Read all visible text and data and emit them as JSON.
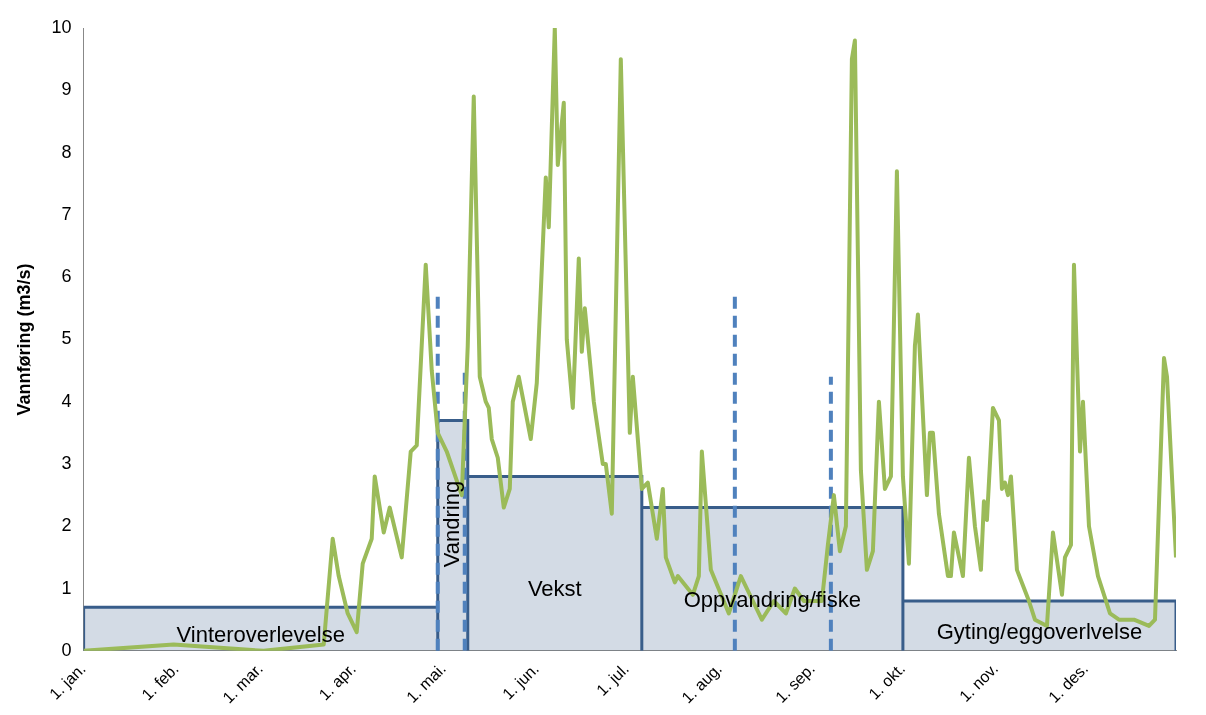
{
  "chart_data": {
    "type": "line",
    "ylabel": "Vannføring (m3/s)",
    "xlim": [
      "--01-01",
      "--12-31"
    ],
    "xticks": [
      {
        "value": "--01-01",
        "label": "1. jan."
      },
      {
        "value": "--02-01",
        "label": "1. feb."
      },
      {
        "value": "--03-01",
        "label": "1. mar."
      },
      {
        "value": "--04-01",
        "label": "1. apr."
      },
      {
        "value": "--05-01",
        "label": "1. mai."
      },
      {
        "value": "--06-01",
        "label": "1. jun."
      },
      {
        "value": "--07-01",
        "label": "1. jul."
      },
      {
        "value": "--08-01",
        "label": "1. aug."
      },
      {
        "value": "--09-01",
        "label": "1. sep."
      },
      {
        "value": "--10-01",
        "label": "1. okt."
      },
      {
        "value": "--11-01",
        "label": "1. nov."
      },
      {
        "value": "--12-01",
        "label": "1. des."
      }
    ],
    "ylim": [
      0,
      10
    ],
    "yticks": [
      0,
      1,
      2,
      3,
      4,
      5,
      6,
      7,
      8,
      9,
      10
    ],
    "grid": false,
    "legend": false,
    "marker": "none",
    "series": [
      {
        "type": "area",
        "color": "#385d8a",
        "x": [
          "--01-01",
          "--01-01",
          "--04-29",
          "--04-29",
          "--04-29",
          "--05-09",
          "--05-09",
          "--05-09",
          "--07-06",
          "--07-06",
          "--07-06",
          "--10-01",
          "--10-01",
          "--10-01",
          "--12-31",
          "--12-31"
        ],
        "values": [
          0,
          0.7,
          0.7,
          0,
          3.7,
          3.7,
          0,
          2.8,
          2.8,
          0,
          2.3,
          2.3,
          0,
          0.8,
          0.8,
          0
        ]
      },
      {
        "color": "#9bbb59",
        "line_style": "solid",
        "x": [
          "--01-01",
          "--01-31",
          "--03-02",
          "--03-22",
          "--03-25",
          "--03-27",
          "--03-30",
          "--04-02",
          "--04-04",
          "--04-07",
          "--04-08",
          "--04-11",
          "--04-13",
          "--04-17",
          "--04-20",
          "--04-22",
          "--04-25",
          "--04-27",
          "--04-29",
          "--05-02",
          "--05-07",
          "--05-09",
          "--05-11",
          "--05-13",
          "--05-15",
          "--05-16",
          "--05-17",
          "--05-19",
          "--05-21",
          "--05-23",
          "--05-24",
          "--05-26",
          "--05-28",
          "--05-30",
          "--06-01",
          "--06-04",
          "--06-05",
          "--06-07",
          "--06-08",
          "--06-10",
          "--06-11",
          "--06-13",
          "--06-15",
          "--06-16",
          "--06-17",
          "--06-20",
          "--06-23",
          "--06-24",
          "--06-26",
          "--06-29",
          "--07-02",
          "--07-03",
          "--07-06",
          "--07-08",
          "--07-11",
          "--07-13",
          "--07-14",
          "--07-17",
          "--07-18",
          "--07-23",
          "--07-25",
          "--07-26",
          "--07-29",
          "--08-04",
          "--08-08",
          "--08-12",
          "--08-15",
          "--08-19",
          "--08-23",
          "--08-26",
          "--08-29",
          "--09-04",
          "--09-06",
          "--09-08",
          "--09-10",
          "--09-12",
          "--09-14",
          "--09-15",
          "--09-17",
          "--09-19",
          "--09-21",
          "--09-23",
          "--09-25",
          "--09-27",
          "--09-29",
          "--10-01",
          "--10-03",
          "--10-05",
          "--10-06",
          "--10-09",
          "--10-10",
          "--10-11",
          "--10-13",
          "--10-16",
          "--10-17",
          "--10-18",
          "--10-21",
          "--10-23",
          "--10-25",
          "--10-27",
          "--10-28",
          "--10-29",
          "--10-31",
          "--11-02",
          "--11-03",
          "--11-04",
          "--11-05",
          "--11-06",
          "--11-08",
          "--11-12",
          "--11-14",
          "--11-18",
          "--11-20",
          "--11-23",
          "--11-24",
          "--11-26",
          "--11-27",
          "--11-29",
          "--11-30",
          "--12-02",
          "--12-05",
          "--12-09",
          "--12-12",
          "--12-17",
          "--12-22",
          "--12-24",
          "--12-27",
          "--12-28",
          "--12-31"
        ],
        "values": [
          0.0,
          0.1,
          0.0,
          0.1,
          1.8,
          1.2,
          0.6,
          0.3,
          1.4,
          1.8,
          2.8,
          1.9,
          2.3,
          1.5,
          3.2,
          3.3,
          6.2,
          4.5,
          3.5,
          3.2,
          2.5,
          4.9,
          8.9,
          4.4,
          4.0,
          3.9,
          3.4,
          3.1,
          2.3,
          2.6,
          4.0,
          4.4,
          3.9,
          3.4,
          4.3,
          7.6,
          6.8,
          10.0,
          7.8,
          8.8,
          5.0,
          3.9,
          6.3,
          4.8,
          5.5,
          4.0,
          3.0,
          3.0,
          2.2,
          9.5,
          3.5,
          4.4,
          2.6,
          2.7,
          1.8,
          2.6,
          1.5,
          1.1,
          1.2,
          0.9,
          1.2,
          3.2,
          1.3,
          0.6,
          1.2,
          0.8,
          0.5,
          0.8,
          0.6,
          1.0,
          0.8,
          0.8,
          1.7,
          2.5,
          1.6,
          2.0,
          9.5,
          9.8,
          2.9,
          1.3,
          1.6,
          4.0,
          2.6,
          2.8,
          7.7,
          2.8,
          1.4,
          4.9,
          5.4,
          2.5,
          3.5,
          3.5,
          2.2,
          1.2,
          1.2,
          1.9,
          1.2,
          3.1,
          2.0,
          1.3,
          2.4,
          2.1,
          3.9,
          3.7,
          2.6,
          2.7,
          2.5,
          2.8,
          1.3,
          0.8,
          0.5,
          0.4,
          1.9,
          0.9,
          1.5,
          1.7,
          6.2,
          3.2,
          4.0,
          2.0,
          1.2,
          0.6,
          0.5,
          0.5,
          0.4,
          0.5,
          4.7,
          4.4,
          1.5
        ]
      },
      {
        "color": "#4f81bd",
        "line_style": "dashed",
        "x": [
          "--04-29",
          "--04-29"
        ],
        "values": [
          0,
          5.7
        ]
      },
      {
        "color": "#4f81bd",
        "line_style": "dashed",
        "x": [
          "--05-08",
          "--05-08"
        ],
        "values": [
          0,
          4.5
        ]
      },
      {
        "color": "#4f81bd",
        "line_style": "dashed",
        "x": [
          "--08-06",
          "--08-06"
        ],
        "values": [
          0,
          5.7
        ]
      },
      {
        "color": "#4f81bd",
        "line_style": "dashed",
        "x": [
          "--09-07",
          "--09-07"
        ],
        "values": [
          0,
          4.4
        ]
      }
    ],
    "annotations": [
      "Vinteroverlevelse",
      "Vandring",
      "Vekst",
      "Oppvandring/fiske",
      "Gyting/eggoverlvelse"
    ]
  }
}
